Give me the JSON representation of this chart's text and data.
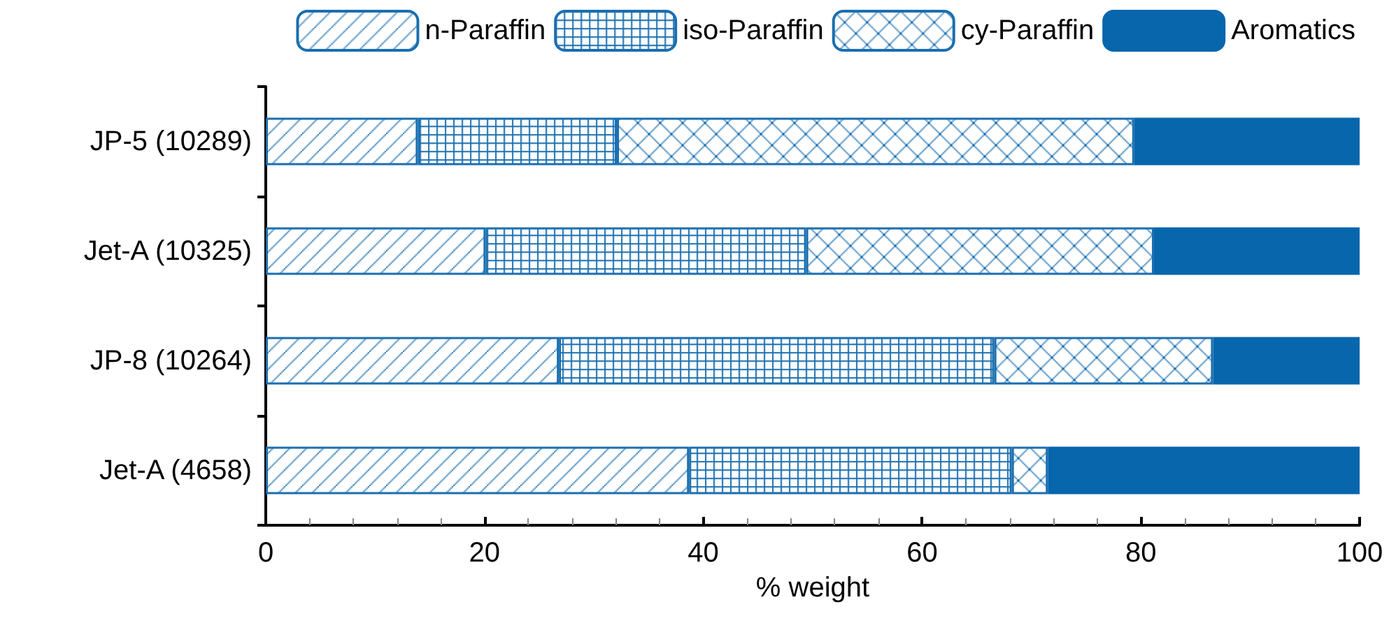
{
  "chart_data": {
    "type": "bar",
    "orientation": "horizontal",
    "stacked": true,
    "xlabel": "% weight",
    "categories": [
      "JP-5 (10289)",
      "Jet-A (10325)",
      "JP-8 (10264)",
      "Jet-A (4658)"
    ],
    "series": [
      {
        "name": "n-Paraffin",
        "color": "#1a6fb0",
        "values": [
          13.9,
          20.1,
          26.8,
          38.7
        ]
      },
      {
        "name": "iso-Paraffin",
        "color": "#1a6fb0",
        "values": [
          18.2,
          29.3,
          39.8,
          29.5
        ]
      },
      {
        "name": "cy-Paraffin",
        "color": "#1a6fb0",
        "values": [
          47.3,
          31.8,
          20.0,
          3.3
        ]
      },
      {
        "name": "Aromatics",
        "color": "#0866ac",
        "values": [
          20.6,
          18.8,
          13.4,
          28.5
        ]
      }
    ],
    "xlim": [
      0,
      100
    ],
    "xticks": [
      0,
      20,
      40,
      60,
      80,
      100
    ],
    "grid": false,
    "legend": "top"
  }
}
